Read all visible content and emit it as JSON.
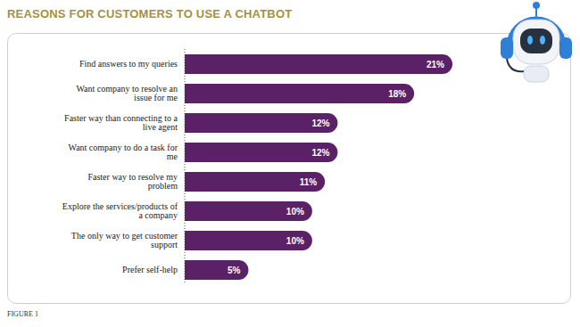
{
  "chart_data": {
    "type": "bar",
    "title": "REASONS FOR CUSTOMERS TO USE A CHATBOT",
    "orientation": "horizontal",
    "categories": [
      "Find answers to my queries",
      "Want company to resolve an issue for me",
      "Faster way than connecting to a live agent",
      "Want company to do a task for me",
      "Faster way to resolve my problem",
      "Explore the services/products of a company",
      "The only way to get customer support",
      "Prefer self-help"
    ],
    "values": [
      21,
      18,
      12,
      12,
      11,
      10,
      10,
      5
    ],
    "value_labels": [
      "21%",
      "18%",
      "12%",
      "12%",
      "11%",
      "10%",
      "10%",
      "5%"
    ],
    "data_labels": true,
    "tick_labels": "y",
    "grid": false,
    "color": "#5b2166",
    "annotations": [
      "FIGURE 1"
    ]
  }
}
